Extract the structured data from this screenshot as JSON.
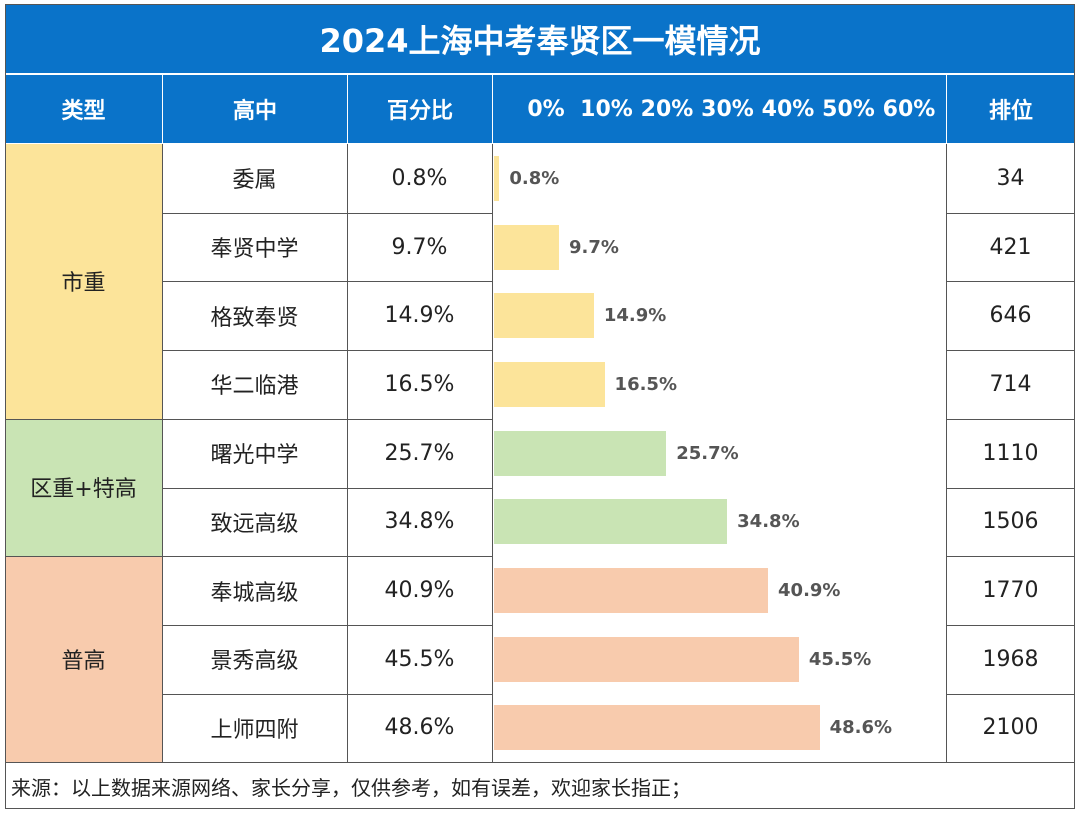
{
  "title": "2024上海中考奉贤区一模情况",
  "headers": {
    "type": "类型",
    "school": "高中",
    "percent": "百分比",
    "rank": "排位"
  },
  "colors": {
    "header": "#0a73c9",
    "shizhong": "#fce49a",
    "quzhong": "#c9e4b4",
    "putong": "#f8cbad"
  },
  "groups": [
    {
      "label": "市重",
      "color": "#fce49a",
      "rows": 4
    },
    {
      "label": "区重+特高",
      "color": "#c9e4b4",
      "rows": 2
    },
    {
      "label": "普高",
      "color": "#f8cbad",
      "rows": 3
    }
  ],
  "chart_data": {
    "type": "bar",
    "orientation": "horizontal",
    "xlim": [
      0,
      60
    ],
    "x_tick_labels": [
      "0%",
      "10%",
      "20%",
      "30%",
      "40%",
      "50%",
      "60%"
    ],
    "categories": [
      "委属",
      "奉贤中学",
      "格致奉贤",
      "华二临港",
      "曙光中学",
      "致远高级",
      "奉城高级",
      "景秀高级",
      "上师四附"
    ],
    "values": [
      0.8,
      9.7,
      14.9,
      16.5,
      25.7,
      34.8,
      40.9,
      45.5,
      48.6
    ],
    "value_labels": [
      "0.8%",
      "9.7%",
      "14.9%",
      "16.5%",
      "25.7%",
      "34.8%",
      "40.9%",
      "45.5%",
      "48.6%"
    ],
    "ranks": [
      "34",
      "421",
      "646",
      "714",
      "1110",
      "1506",
      "1770",
      "1968",
      "2100"
    ],
    "groups": [
      "市重",
      "市重",
      "市重",
      "市重",
      "区重+特高",
      "区重+特高",
      "普高",
      "普高",
      "普高"
    ]
  },
  "footer": "来源：以上数据来源网络、家长分享，仅供参考，如有误差，欢迎家长指正；"
}
